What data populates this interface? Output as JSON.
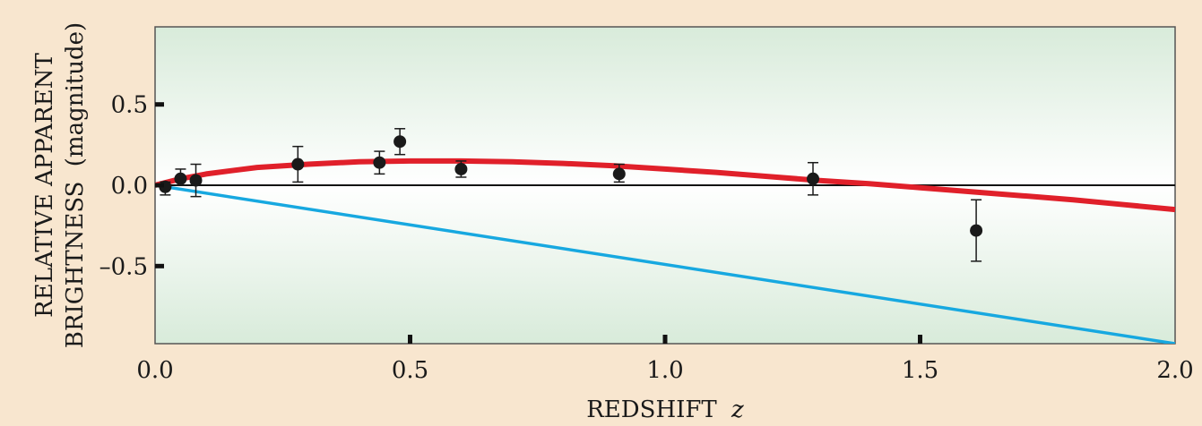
{
  "chart_data": {
    "type": "scatter",
    "xlabel": "REDSHIFT",
    "xlabel_var": "z",
    "ylabel_line1": "RELATIVE APPARENT",
    "ylabel_line2": "BRIGHTNESS",
    "ylabel_unit": "(magnitude)",
    "xlim": [
      0.0,
      2.0
    ],
    "ylim": [
      -0.98,
      0.98
    ],
    "x_ticks": [
      0.0,
      0.5,
      1.0,
      1.5,
      2.0
    ],
    "x_tick_labels": [
      "0.0",
      "0.5",
      "1.0",
      "1.5",
      "2.0"
    ],
    "y_ticks": [
      -0.5,
      0.0,
      0.5
    ],
    "y_tick_labels": [
      "–0.5",
      "0.0",
      "0.5"
    ],
    "grid": false,
    "legend": "none",
    "colors": {
      "points": "#1a1a1a",
      "red_curve": "#e0202a",
      "blue_line": "#17a8e0",
      "zero_line": "#111111",
      "plot_fill_outer": "#d8ebda",
      "plot_fill_center": "#ffffff"
    },
    "data_points": [
      {
        "x": 0.02,
        "y": -0.01,
        "err_low": 0.05,
        "err_high": 0.03
      },
      {
        "x": 0.05,
        "y": 0.04,
        "err_low": 0.04,
        "err_high": 0.06
      },
      {
        "x": 0.08,
        "y": 0.03,
        "err_low": 0.1,
        "err_high": 0.1
      },
      {
        "x": 0.28,
        "y": 0.13,
        "err_low": 0.11,
        "err_high": 0.11
      },
      {
        "x": 0.44,
        "y": 0.14,
        "err_low": 0.07,
        "err_high": 0.07
      },
      {
        "x": 0.48,
        "y": 0.27,
        "err_low": 0.08,
        "err_high": 0.08
      },
      {
        "x": 0.6,
        "y": 0.1,
        "err_low": 0.05,
        "err_high": 0.05
      },
      {
        "x": 0.91,
        "y": 0.07,
        "err_low": 0.05,
        "err_high": 0.06
      },
      {
        "x": 1.29,
        "y": 0.04,
        "err_low": 0.1,
        "err_high": 0.1
      },
      {
        "x": 1.61,
        "y": -0.28,
        "err_low": 0.19,
        "err_high": 0.19
      }
    ],
    "red_curve": {
      "x": [
        0.0,
        0.05,
        0.1,
        0.15,
        0.2,
        0.3,
        0.4,
        0.5,
        0.6,
        0.7,
        0.8,
        0.9,
        1.0,
        1.1,
        1.2,
        1.3,
        1.4,
        1.5,
        1.6,
        1.7,
        1.8,
        1.9,
        2.0
      ],
      "y": [
        0.0,
        0.04,
        0.07,
        0.09,
        0.11,
        0.13,
        0.145,
        0.15,
        0.15,
        0.145,
        0.135,
        0.12,
        0.1,
        0.08,
        0.055,
        0.03,
        0.01,
        -0.015,
        -0.04,
        -0.065,
        -0.09,
        -0.12,
        -0.15
      ]
    },
    "blue_line": {
      "x": [
        0.0,
        2.0
      ],
      "y": [
        0.0,
        -0.98
      ]
    },
    "zero_line": {
      "y": 0.0
    }
  }
}
